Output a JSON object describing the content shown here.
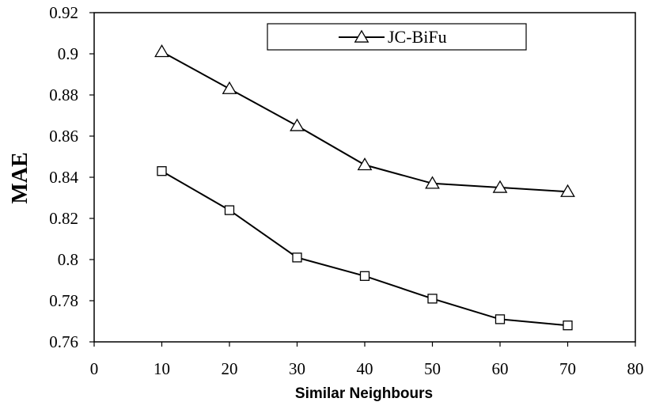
{
  "chart_data": {
    "type": "line",
    "title": "",
    "xlabel": "Similar Neighbours",
    "ylabel": "MAE",
    "xlim": [
      0,
      80
    ],
    "ylim": [
      0.76,
      0.92
    ],
    "x_ticks": [
      0,
      10,
      20,
      30,
      40,
      50,
      60,
      70,
      80
    ],
    "y_ticks": [
      0.76,
      0.78,
      0.8,
      0.82,
      0.84,
      0.86,
      0.88,
      0.9,
      0.92
    ],
    "x_tick_labels": [
      "0",
      "10",
      "20",
      "30",
      "40",
      "50",
      "60",
      "70",
      "80"
    ],
    "y_tick_labels": [
      "0.76",
      "0.78",
      "0.8",
      "0.82",
      "0.84",
      "0.86",
      "0.88",
      "0.9",
      "0.92"
    ],
    "grid": false,
    "legend_position": "top-right",
    "x": [
      10,
      20,
      30,
      40,
      50,
      60,
      70
    ],
    "series": [
      {
        "name": "JC-BiFu",
        "marker": "triangle",
        "values": [
          0.901,
          0.883,
          0.865,
          0.846,
          0.837,
          0.835,
          0.833
        ]
      },
      {
        "marker": "square",
        "values": [
          0.843,
          0.824,
          0.801,
          0.792,
          0.781,
          0.771,
          0.768
        ]
      }
    ],
    "colors": {
      "line": "#000000",
      "marker_fill": "#ffffff"
    }
  }
}
